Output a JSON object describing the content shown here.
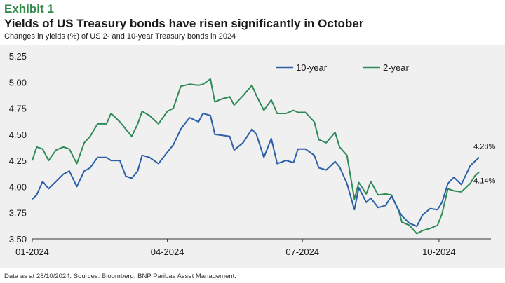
{
  "header": {
    "exhibit": "Exhibit 1",
    "title": "Yields of US Treasury bonds have risen significantly in October",
    "subtitle": "Changes in yields (%) of US 2- and 10-year Treasury bonds in 2024"
  },
  "footnote": "Data as at 28/10/2024. Sources: Bloomberg, BNP Paribas Asset Management.",
  "chart_data": {
    "type": "line",
    "title": "",
    "xlabel": "",
    "ylabel": "",
    "ylim": [
      3.5,
      5.25
    ],
    "yticks": [
      3.5,
      3.75,
      4.0,
      4.25,
      4.5,
      4.75,
      5.0,
      5.25
    ],
    "ytick_labels": [
      "3.50",
      "3.75",
      "4.00",
      "4.25",
      "4.50",
      "4.75",
      "5.00",
      "5.25"
    ],
    "xlim": [
      "2024-01-01",
      "2024-11-05"
    ],
    "xticks": [
      "2024-01-01",
      "2024-04-01",
      "2024-07-01",
      "2024-10-01"
    ],
    "xtick_labels": [
      "01-2024",
      "04-2024",
      "07-2024",
      "10-2024"
    ],
    "grid": false,
    "legend": "top-center",
    "series": [
      {
        "name": "10-year",
        "color": "#2c5fa8",
        "end_label": "4.28%",
        "points": [
          [
            "2024-01-01",
            3.88
          ],
          [
            "2024-01-04",
            3.92
          ],
          [
            "2024-01-08",
            4.05
          ],
          [
            "2024-01-12",
            3.98
          ],
          [
            "2024-01-17",
            4.05
          ],
          [
            "2024-01-22",
            4.12
          ],
          [
            "2024-01-26",
            4.15
          ],
          [
            "2024-01-31",
            4.0
          ],
          [
            "2024-02-05",
            4.15
          ],
          [
            "2024-02-09",
            4.18
          ],
          [
            "2024-02-14",
            4.28
          ],
          [
            "2024-02-20",
            4.28
          ],
          [
            "2024-02-23",
            4.25
          ],
          [
            "2024-02-29",
            4.25
          ],
          [
            "2024-03-04",
            4.1
          ],
          [
            "2024-03-08",
            4.08
          ],
          [
            "2024-03-12",
            4.15
          ],
          [
            "2024-03-15",
            4.3
          ],
          [
            "2024-03-20",
            4.28
          ],
          [
            "2024-03-26",
            4.22
          ],
          [
            "2024-04-01",
            4.33
          ],
          [
            "2024-04-05",
            4.4
          ],
          [
            "2024-04-10",
            4.55
          ],
          [
            "2024-04-16",
            4.66
          ],
          [
            "2024-04-22",
            4.62
          ],
          [
            "2024-04-25",
            4.7
          ],
          [
            "2024-04-30",
            4.68
          ],
          [
            "2024-05-03",
            4.5
          ],
          [
            "2024-05-08",
            4.49
          ],
          [
            "2024-05-13",
            4.48
          ],
          [
            "2024-05-16",
            4.35
          ],
          [
            "2024-05-22",
            4.42
          ],
          [
            "2024-05-28",
            4.55
          ],
          [
            "2024-05-31",
            4.5
          ],
          [
            "2024-06-05",
            4.28
          ],
          [
            "2024-06-10",
            4.46
          ],
          [
            "2024-06-14",
            4.22
          ],
          [
            "2024-06-20",
            4.25
          ],
          [
            "2024-06-25",
            4.23
          ],
          [
            "2024-06-28",
            4.36
          ],
          [
            "2024-07-03",
            4.36
          ],
          [
            "2024-07-09",
            4.3
          ],
          [
            "2024-07-12",
            4.18
          ],
          [
            "2024-07-17",
            4.16
          ],
          [
            "2024-07-23",
            4.24
          ],
          [
            "2024-07-26",
            4.19
          ],
          [
            "2024-07-31",
            4.03
          ],
          [
            "2024-08-05",
            3.78
          ],
          [
            "2024-08-08",
            3.99
          ],
          [
            "2024-08-13",
            3.85
          ],
          [
            "2024-08-16",
            3.89
          ],
          [
            "2024-08-21",
            3.8
          ],
          [
            "2024-08-26",
            3.82
          ],
          [
            "2024-08-30",
            3.91
          ],
          [
            "2024-09-04",
            3.77
          ],
          [
            "2024-09-06",
            3.72
          ],
          [
            "2024-09-11",
            3.65
          ],
          [
            "2024-09-16",
            3.62
          ],
          [
            "2024-09-20",
            3.73
          ],
          [
            "2024-09-25",
            3.79
          ],
          [
            "2024-09-30",
            3.78
          ],
          [
            "2024-10-03",
            3.85
          ],
          [
            "2024-10-07",
            4.03
          ],
          [
            "2024-10-11",
            4.09
          ],
          [
            "2024-10-16",
            4.02
          ],
          [
            "2024-10-22",
            4.2
          ],
          [
            "2024-10-25",
            4.24
          ],
          [
            "2024-10-28",
            4.28
          ]
        ]
      },
      {
        "name": "2-year",
        "color": "#2e8b57",
        "end_label": "4.14%",
        "points": [
          [
            "2024-01-01",
            4.25
          ],
          [
            "2024-01-04",
            4.38
          ],
          [
            "2024-01-08",
            4.36
          ],
          [
            "2024-01-12",
            4.25
          ],
          [
            "2024-01-17",
            4.35
          ],
          [
            "2024-01-22",
            4.38
          ],
          [
            "2024-01-26",
            4.36
          ],
          [
            "2024-01-31",
            4.22
          ],
          [
            "2024-02-05",
            4.42
          ],
          [
            "2024-02-09",
            4.48
          ],
          [
            "2024-02-14",
            4.6
          ],
          [
            "2024-02-20",
            4.6
          ],
          [
            "2024-02-23",
            4.7
          ],
          [
            "2024-02-29",
            4.62
          ],
          [
            "2024-03-04",
            4.55
          ],
          [
            "2024-03-08",
            4.48
          ],
          [
            "2024-03-12",
            4.6
          ],
          [
            "2024-03-15",
            4.72
          ],
          [
            "2024-03-20",
            4.68
          ],
          [
            "2024-03-26",
            4.6
          ],
          [
            "2024-04-01",
            4.72
          ],
          [
            "2024-04-05",
            4.75
          ],
          [
            "2024-04-10",
            4.96
          ],
          [
            "2024-04-16",
            4.98
          ],
          [
            "2024-04-22",
            4.97
          ],
          [
            "2024-04-25",
            4.98
          ],
          [
            "2024-04-30",
            5.03
          ],
          [
            "2024-05-03",
            4.81
          ],
          [
            "2024-05-08",
            4.84
          ],
          [
            "2024-05-13",
            4.86
          ],
          [
            "2024-05-16",
            4.78
          ],
          [
            "2024-05-22",
            4.87
          ],
          [
            "2024-05-28",
            4.97
          ],
          [
            "2024-05-31",
            4.87
          ],
          [
            "2024-06-05",
            4.73
          ],
          [
            "2024-06-10",
            4.83
          ],
          [
            "2024-06-14",
            4.7
          ],
          [
            "2024-06-20",
            4.7
          ],
          [
            "2024-06-25",
            4.73
          ],
          [
            "2024-06-28",
            4.71
          ],
          [
            "2024-07-03",
            4.71
          ],
          [
            "2024-07-09",
            4.62
          ],
          [
            "2024-07-12",
            4.45
          ],
          [
            "2024-07-17",
            4.42
          ],
          [
            "2024-07-23",
            4.52
          ],
          [
            "2024-07-26",
            4.38
          ],
          [
            "2024-07-31",
            4.3
          ],
          [
            "2024-08-05",
            3.88
          ],
          [
            "2024-08-08",
            4.04
          ],
          [
            "2024-08-13",
            3.93
          ],
          [
            "2024-08-16",
            4.05
          ],
          [
            "2024-08-21",
            3.92
          ],
          [
            "2024-08-26",
            3.93
          ],
          [
            "2024-08-30",
            3.92
          ],
          [
            "2024-09-04",
            3.76
          ],
          [
            "2024-09-06",
            3.66
          ],
          [
            "2024-09-11",
            3.63
          ],
          [
            "2024-09-16",
            3.55
          ],
          [
            "2024-09-20",
            3.58
          ],
          [
            "2024-09-25",
            3.6
          ],
          [
            "2024-09-30",
            3.63
          ],
          [
            "2024-10-03",
            3.74
          ],
          [
            "2024-10-07",
            3.98
          ],
          [
            "2024-10-11",
            3.96
          ],
          [
            "2024-10-16",
            3.95
          ],
          [
            "2024-10-22",
            4.03
          ],
          [
            "2024-10-25",
            4.1
          ],
          [
            "2024-10-28",
            4.14
          ]
        ]
      }
    ]
  }
}
